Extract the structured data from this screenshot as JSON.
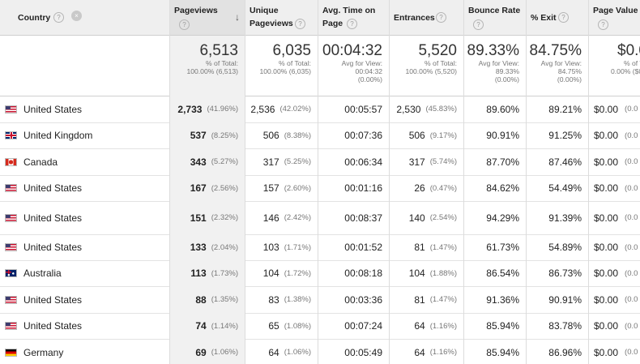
{
  "columns": {
    "country": "Country",
    "pageviews": "Pageviews",
    "unique_line1": "Unique",
    "unique_line2": "Pageviews",
    "avgtime_line1": "Avg. Time on",
    "avgtime_line2": "Page",
    "entrances": "Entrances",
    "bounce": "Bounce Rate",
    "exit": "% Exit",
    "pagevalue": "Page Value"
  },
  "icons": {
    "help": "question-mark-icon",
    "sort": "arrow-down-icon",
    "sort_glyph": "↓",
    "help_glyph": "?"
  },
  "totals": {
    "pageviews": {
      "value": "6,513",
      "l1": "% of Total:",
      "l2": "100.00% (6,513)"
    },
    "unique": {
      "value": "6,035",
      "l1": "% of Total:",
      "l2": "100.00% (6,035)"
    },
    "avgtime": {
      "value": "00:04:32",
      "l1": "Avg for View:",
      "l2": "00:04:32",
      "l3": "(0.00%)"
    },
    "entrances": {
      "value": "5,520",
      "l1": "% of Total:",
      "l2": "100.00% (5,520)"
    },
    "bounce": {
      "value": "89.33%",
      "l1": "Avg for View:",
      "l2": "89.33%",
      "l3": "(0.00%)"
    },
    "exit": {
      "value": "84.75%",
      "l1": "Avg for View:",
      "l2": "84.75%",
      "l3": "(0.00%)"
    },
    "pagevalue": {
      "value": "$0.0",
      "l1": "% of T",
      "l2": "0.00% ($0."
    }
  },
  "rows": [
    {
      "flag": "us",
      "country": "United States",
      "pageviews": "2,733",
      "pageviews_pct": "(41.96%)",
      "unique": "2,536",
      "unique_pct": "(42.02%)",
      "avgtime": "00:05:57",
      "entrances": "2,530",
      "entrances_pct": "(45.83%)",
      "bounce": "89.60%",
      "exit": "89.21%",
      "value": "$0.00",
      "value_pct": "(0.0"
    },
    {
      "flag": "uk",
      "country": "United Kingdom",
      "pageviews": "537",
      "pageviews_pct": "(8.25%)",
      "unique": "506",
      "unique_pct": "(8.38%)",
      "avgtime": "00:07:36",
      "entrances": "506",
      "entrances_pct": "(9.17%)",
      "bounce": "90.91%",
      "exit": "91.25%",
      "value": "$0.00",
      "value_pct": "(0.0"
    },
    {
      "flag": "ca",
      "country": "Canada",
      "pageviews": "343",
      "pageviews_pct": "(5.27%)",
      "unique": "317",
      "unique_pct": "(5.25%)",
      "avgtime": "00:06:34",
      "entrances": "317",
      "entrances_pct": "(5.74%)",
      "bounce": "87.70%",
      "exit": "87.46%",
      "value": "$0.00",
      "value_pct": "(0.0"
    },
    {
      "flag": "us",
      "country": "United States",
      "pageviews": "167",
      "pageviews_pct": "(2.56%)",
      "unique": "157",
      "unique_pct": "(2.60%)",
      "avgtime": "00:01:16",
      "entrances": "26",
      "entrances_pct": "(0.47%)",
      "bounce": "84.62%",
      "exit": "54.49%",
      "value": "$0.00",
      "value_pct": "(0.0"
    },
    {
      "flag": "us",
      "country": "United States",
      "pageviews": "151",
      "pageviews_pct": "(2.32%)",
      "unique": "146",
      "unique_pct": "(2.42%)",
      "avgtime": "00:08:37",
      "entrances": "140",
      "entrances_pct": "(2.54%)",
      "bounce": "94.29%",
      "exit": "91.39%",
      "value": "$0.00",
      "value_pct": "(0.0"
    },
    {
      "flag": "us",
      "country": "United States",
      "pageviews": "133",
      "pageviews_pct": "(2.04%)",
      "unique": "103",
      "unique_pct": "(1.71%)",
      "avgtime": "00:01:52",
      "entrances": "81",
      "entrances_pct": "(1.47%)",
      "bounce": "61.73%",
      "exit": "54.89%",
      "value": "$0.00",
      "value_pct": "(0.0"
    },
    {
      "flag": "au",
      "country": "Australia",
      "pageviews": "113",
      "pageviews_pct": "(1.73%)",
      "unique": "104",
      "unique_pct": "(1.72%)",
      "avgtime": "00:08:18",
      "entrances": "104",
      "entrances_pct": "(1.88%)",
      "bounce": "86.54%",
      "exit": "86.73%",
      "value": "$0.00",
      "value_pct": "(0.0"
    },
    {
      "flag": "us",
      "country": "United States",
      "pageviews": "88",
      "pageviews_pct": "(1.35%)",
      "unique": "83",
      "unique_pct": "(1.38%)",
      "avgtime": "00:03:36",
      "entrances": "81",
      "entrances_pct": "(1.47%)",
      "bounce": "91.36%",
      "exit": "90.91%",
      "value": "$0.00",
      "value_pct": "(0.0"
    },
    {
      "flag": "us",
      "country": "United States",
      "pageviews": "74",
      "pageviews_pct": "(1.14%)",
      "unique": "65",
      "unique_pct": "(1.08%)",
      "avgtime": "00:07:24",
      "entrances": "64",
      "entrances_pct": "(1.16%)",
      "bounce": "85.94%",
      "exit": "83.78%",
      "value": "$0.00",
      "value_pct": "(0.0"
    },
    {
      "flag": "de",
      "country": "Germany",
      "pageviews": "69",
      "pageviews_pct": "(1.06%)",
      "unique": "64",
      "unique_pct": "(1.06%)",
      "avgtime": "00:05:49",
      "entrances": "64",
      "entrances_pct": "(1.16%)",
      "bounce": "85.94%",
      "exit": "86.96%",
      "value": "$0.00",
      "value_pct": "(0.0"
    }
  ]
}
